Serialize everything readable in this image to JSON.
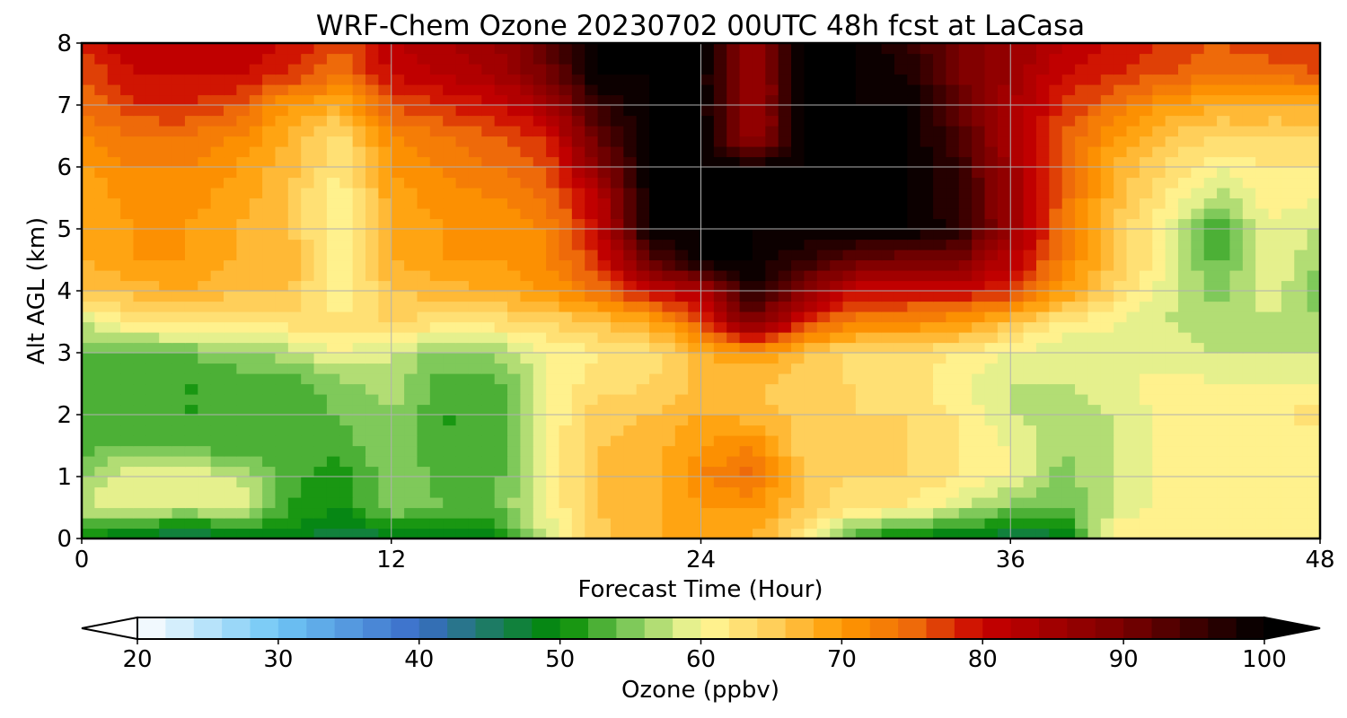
{
  "chart_data": {
    "type": "heatmap",
    "title": "WRF-Chem Ozone  20230702 00UTC 48h fcst at LaCasa",
    "xlabel": "Forecast Time (Hour)",
    "ylabel": "Alt AGL (km)",
    "xlim": [
      0,
      48
    ],
    "ylim": [
      0,
      8
    ],
    "x_ticks": [
      0,
      12,
      24,
      36,
      48
    ],
    "y_ticks": [
      0,
      1,
      2,
      3,
      4,
      5,
      6,
      7,
      8
    ],
    "grid": true,
    "z_range": [
      20,
      100
    ],
    "colorbar": {
      "label": "Ozone  (ppbv)",
      "ticks": [
        20,
        30,
        40,
        50,
        60,
        70,
        80,
        90,
        100
      ],
      "extend": "both",
      "orientation": "horizontal",
      "stops": [
        {
          "value": 20,
          "color": "#ffffff"
        },
        {
          "value": 30,
          "color": "#6fc6f5"
        },
        {
          "value": 40,
          "color": "#3a6cc8"
        },
        {
          "value": 50,
          "color": "#008a00"
        },
        {
          "value": 55,
          "color": "#7fc95a"
        },
        {
          "value": 60,
          "color": "#fffa9a"
        },
        {
          "value": 65,
          "color": "#ffcf5a"
        },
        {
          "value": 70,
          "color": "#ff9900"
        },
        {
          "value": 75,
          "color": "#ee6a0a"
        },
        {
          "value": 80,
          "color": "#c80000"
        },
        {
          "value": 90,
          "color": "#7a0000"
        },
        {
          "value": 100,
          "color": "#000000"
        }
      ]
    },
    "x": [
      0,
      2,
      4,
      6,
      8,
      10,
      12,
      14,
      16,
      18,
      20,
      22,
      24,
      26,
      28,
      30,
      32,
      34,
      36,
      38,
      40,
      42,
      44,
      46,
      48
    ],
    "y": [
      0,
      0.5,
      1,
      1.5,
      2,
      2.5,
      3,
      3.5,
      4,
      4.5,
      5,
      5.5,
      6,
      6.5,
      7,
      7.5,
      8
    ],
    "z": [
      [
        50,
        47,
        44,
        47,
        49,
        46,
        47,
        47,
        49,
        58,
        65,
        68,
        68,
        68,
        62,
        52,
        48,
        48,
        46,
        47,
        62,
        62,
        62,
        62,
        62
      ],
      [
        58,
        60,
        58,
        60,
        52,
        50,
        56,
        54,
        54,
        60,
        66,
        67,
        70,
        70,
        66,
        62,
        62,
        58,
        55,
        54,
        58,
        61,
        60,
        60,
        60
      ],
      [
        56,
        60,
        60,
        58,
        53,
        50,
        56,
        53,
        53,
        60,
        66,
        67,
        72,
        75,
        65,
        64,
        64,
        62,
        60,
        55,
        58,
        61,
        60,
        60,
        60
      ],
      [
        53,
        54,
        53,
        53,
        53,
        53,
        56,
        52,
        52,
        60,
        66,
        67,
        70,
        72,
        65,
        64,
        64,
        62,
        60,
        56,
        58,
        61,
        60,
        60,
        60
      ],
      [
        53,
        53,
        52,
        52,
        53,
        54,
        56,
        52,
        52,
        60,
        65,
        66,
        68,
        67,
        65,
        64,
        64,
        62,
        58,
        57,
        58,
        61,
        60,
        60,
        64
      ],
      [
        52,
        52,
        52,
        52,
        53,
        55,
        57,
        53,
        53,
        60,
        63,
        64,
        66,
        66,
        65,
        64,
        63,
        60,
        58,
        58,
        59,
        61,
        60,
        60,
        60
      ],
      [
        54,
        53,
        54,
        56,
        57,
        60,
        58,
        55,
        56,
        60,
        62,
        63,
        68,
        70,
        66,
        63,
        63,
        62,
        60,
        58,
        59,
        59,
        58,
        58,
        58
      ],
      [
        58,
        62,
        63,
        63,
        63,
        63,
        64,
        63,
        63,
        64,
        66,
        68,
        76,
        90,
        78,
        72,
        72,
        70,
        66,
        62,
        60,
        58,
        57,
        57,
        57
      ],
      [
        66,
        67,
        68,
        66,
        66,
        60,
        66,
        67,
        68,
        70,
        74,
        80,
        83,
        98,
        88,
        80,
        80,
        80,
        78,
        70,
        64,
        59,
        55,
        60,
        54
      ],
      [
        68,
        70,
        70,
        68,
        68,
        60,
        68,
        70,
        70,
        72,
        78,
        92,
        100,
        100,
        96,
        92,
        90,
        90,
        82,
        73,
        66,
        60,
        53,
        60,
        56
      ],
      [
        68,
        70,
        70,
        68,
        66,
        60,
        68,
        70,
        70,
        72,
        80,
        100,
        100,
        100,
        100,
        100,
        100,
        97,
        86,
        74,
        66,
        60,
        52,
        60,
        58
      ],
      [
        68,
        71,
        71,
        69,
        66,
        60,
        69,
        71,
        72,
        74,
        82,
        100,
        100,
        100,
        100,
        100,
        100,
        96,
        86,
        75,
        67,
        62,
        57,
        61,
        60
      ],
      [
        70,
        72,
        72,
        70,
        67,
        62,
        70,
        72,
        74,
        76,
        88,
        100,
        100,
        100,
        100,
        100,
        100,
        96,
        85,
        76,
        68,
        64,
        60,
        62,
        62
      ],
      [
        72,
        74,
        74,
        72,
        68,
        63,
        72,
        74,
        76,
        78,
        92,
        100,
        100,
        84,
        100,
        100,
        100,
        94,
        84,
        76,
        70,
        66,
        64,
        64,
        64
      ],
      [
        74,
        78,
        78,
        76,
        70,
        68,
        76,
        78,
        80,
        84,
        96,
        100,
        100,
        84,
        100,
        100,
        100,
        92,
        84,
        78,
        74,
        70,
        68,
        68,
        68
      ],
      [
        76,
        80,
        80,
        80,
        78,
        74,
        80,
        82,
        84,
        90,
        100,
        100,
        100,
        84,
        100,
        100,
        98,
        90,
        86,
        80,
        78,
        76,
        74,
        74,
        76
      ],
      [
        78,
        82,
        82,
        82,
        80,
        76,
        82,
        84,
        86,
        92,
        100,
        100,
        100,
        86,
        100,
        100,
        96,
        90,
        86,
        82,
        80,
        78,
        76,
        78,
        78
      ]
    ]
  }
}
